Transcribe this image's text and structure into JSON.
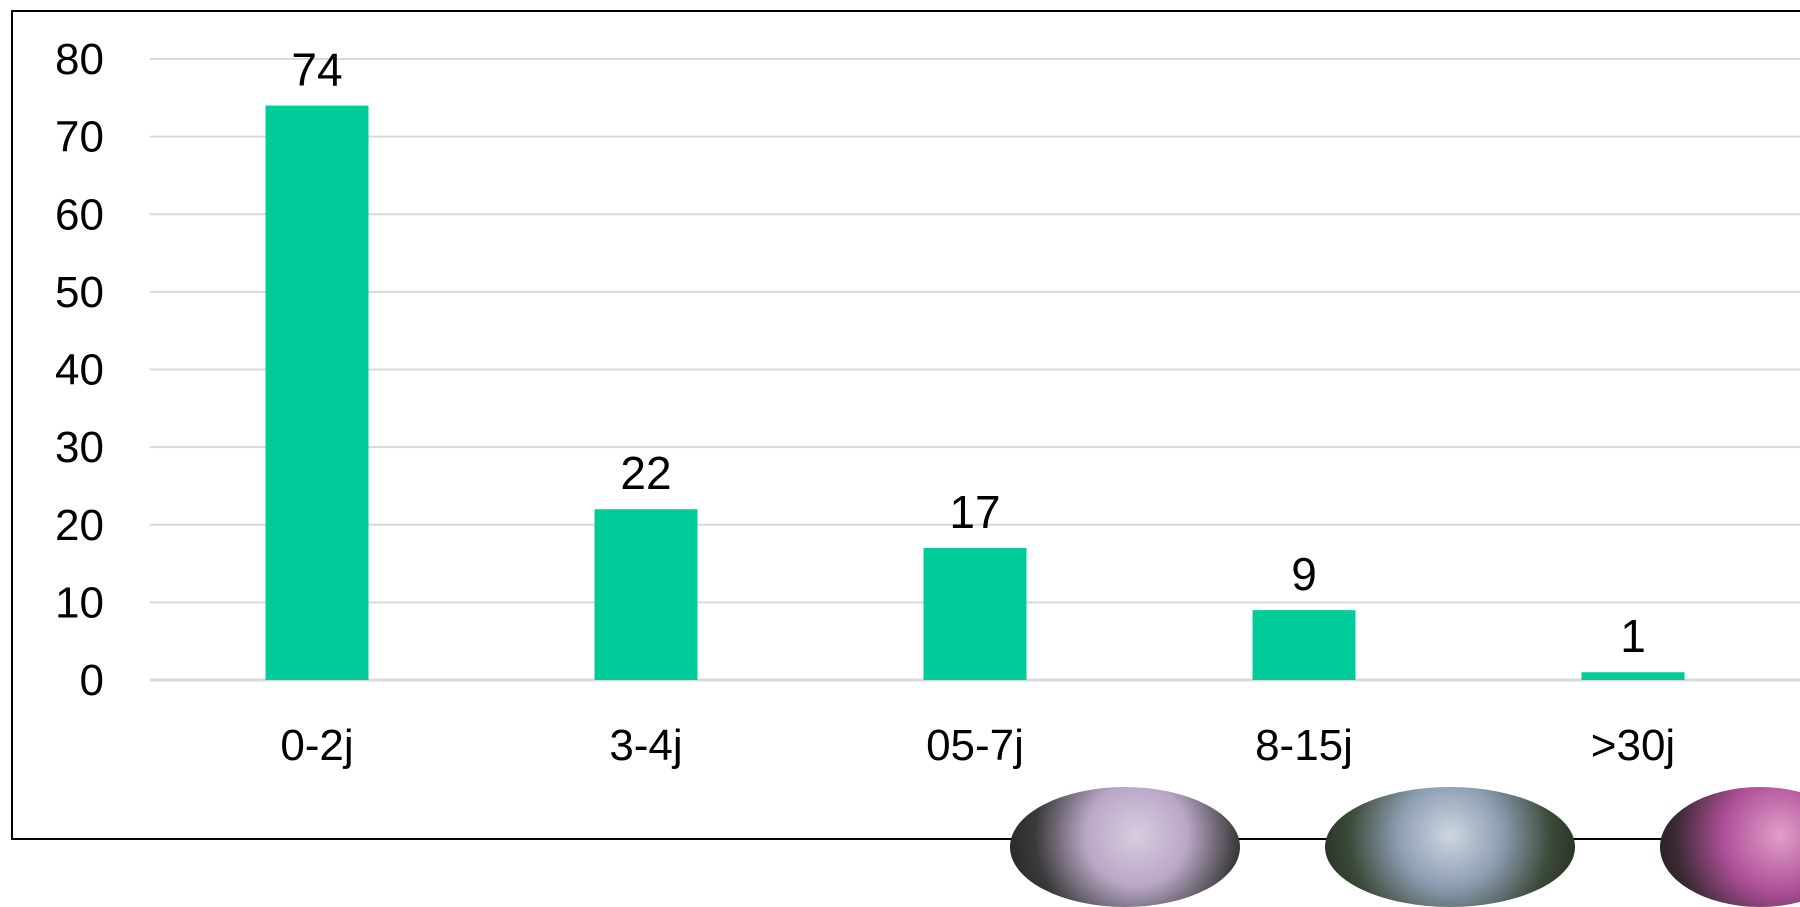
{
  "chart_data": {
    "type": "bar",
    "categories": [
      "0-2j",
      "3-4j",
      "05-7j",
      "8-15j",
      ">30j"
    ],
    "values": [
      74,
      22,
      17,
      9,
      1
    ],
    "title": "",
    "xlabel": "",
    "ylabel": "",
    "ylim": [
      0,
      80
    ],
    "yticks": [
      0,
      10,
      20,
      30,
      40,
      50,
      60,
      70,
      80
    ],
    "grid": true,
    "legend": "none",
    "data_labels": true,
    "colors": {
      "bar": "#00CC99",
      "grid": "#D9D9D9",
      "axis": "#D9D9D9",
      "text": "#000000"
    }
  }
}
